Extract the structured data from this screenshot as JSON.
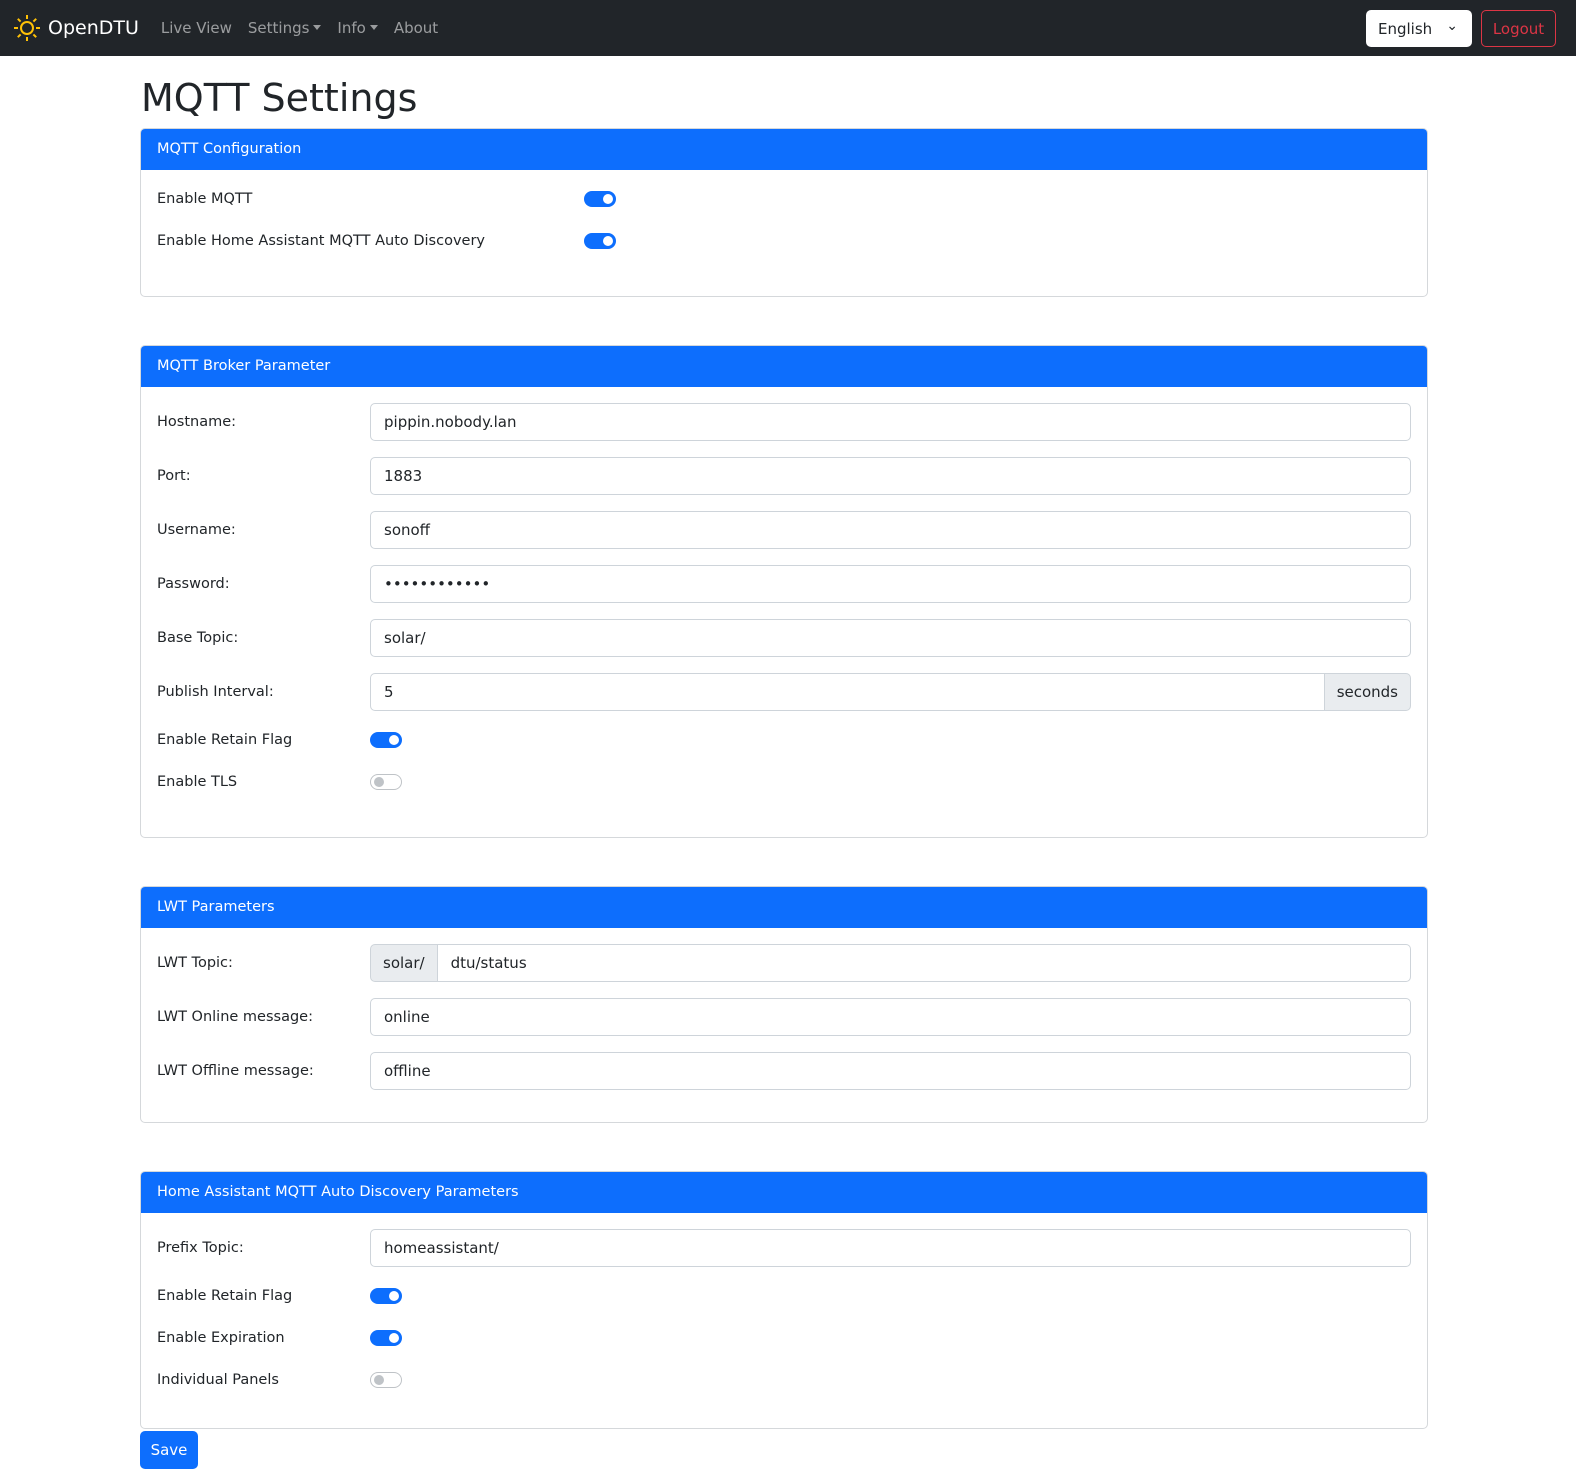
{
  "nav": {
    "brand": "OpenDTU",
    "items": [
      "Live View",
      "Settings",
      "Info",
      "About"
    ],
    "language": "English",
    "logout": "Logout"
  },
  "title": "MQTT Settings",
  "config": {
    "header": "MQTT Configuration",
    "enable_mqtt": {
      "label": "Enable MQTT",
      "on": true
    },
    "enable_ha": {
      "label": "Enable Home Assistant MQTT Auto Discovery",
      "on": true
    }
  },
  "broker": {
    "header": "MQTT Broker Parameter",
    "hostname": {
      "label": "Hostname:",
      "value": "pippin.nobody.lan"
    },
    "port": {
      "label": "Port:",
      "value": "1883"
    },
    "username": {
      "label": "Username:",
      "value": "sonoff"
    },
    "password": {
      "label": "Password:",
      "value": "••••••••••••"
    },
    "base_topic": {
      "label": "Base Topic:",
      "value": "solar/"
    },
    "interval": {
      "label": "Publish Interval:",
      "value": "5",
      "unit": "seconds"
    },
    "retain": {
      "label": "Enable Retain Flag",
      "on": true
    },
    "tls": {
      "label": "Enable TLS",
      "on": false
    }
  },
  "lwt": {
    "header": "LWT Parameters",
    "topic": {
      "label": "LWT Topic:",
      "prefix": "solar/",
      "value": "dtu/status"
    },
    "online": {
      "label": "LWT Online message:",
      "value": "online"
    },
    "offline": {
      "label": "LWT Offline message:",
      "value": "offline"
    }
  },
  "ha": {
    "header": "Home Assistant MQTT Auto Discovery Parameters",
    "prefix": {
      "label": "Prefix Topic:",
      "value": "homeassistant/"
    },
    "retain": {
      "label": "Enable Retain Flag",
      "on": true
    },
    "expiration": {
      "label": "Enable Expiration",
      "on": true
    },
    "panels": {
      "label": "Individual Panels",
      "on": false
    }
  },
  "save": "Save",
  "colors": {
    "primary": "#0d6efd",
    "navbar": "#212529",
    "danger": "#dc3545",
    "sun": "#ffc107"
  }
}
